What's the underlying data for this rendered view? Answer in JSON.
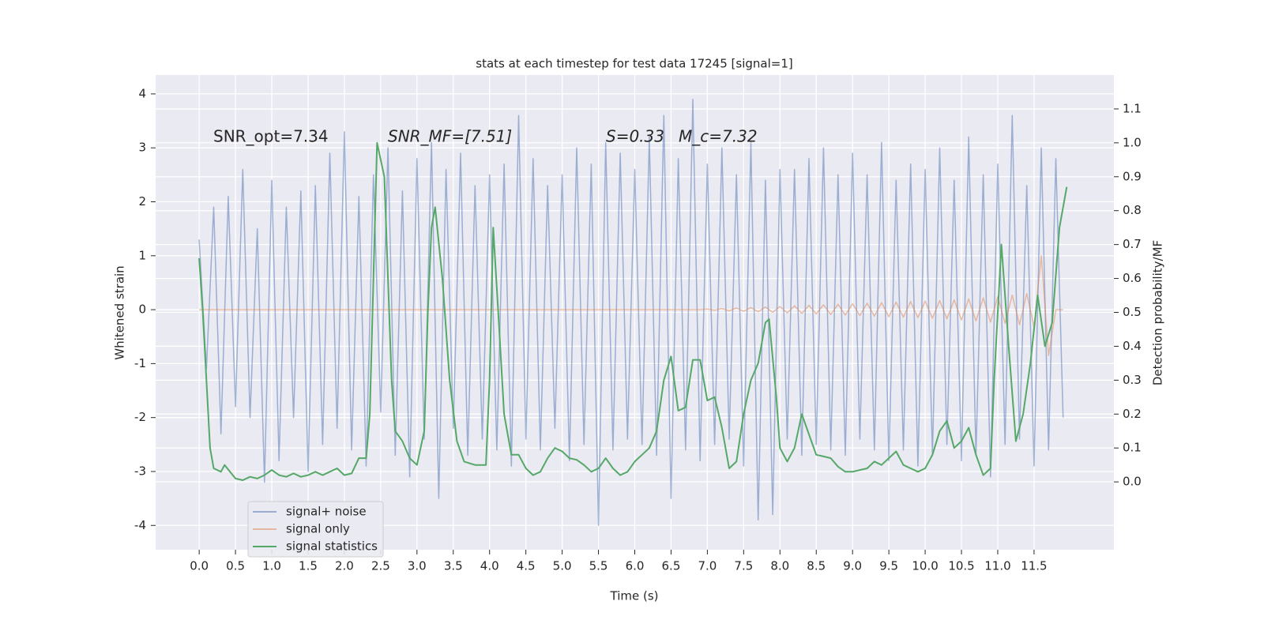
{
  "chart_data": {
    "type": "line",
    "title": "stats at each timestep for test data 17245 [signal=1]",
    "xlabel": "Time (s)",
    "ylabel": "Whitened strain",
    "y2label": "Detection probability/MF",
    "annotations": [
      "SNR_opt=7.34",
      "SNR_MF=[7.51]",
      "S=0.33",
      "M_c=7.32"
    ],
    "xlim": [
      -0.6,
      12.6
    ],
    "ylim": [
      -4.45,
      4.35
    ],
    "y2lim": [
      -0.2,
      1.2
    ],
    "xticks": [
      {
        "value": 0,
        "label": "0.0"
      },
      0.5,
      {
        "value": 1,
        "label": "1.0"
      },
      1.5,
      {
        "value": 2,
        "label": "2.0"
      },
      2.5,
      {
        "value": 3,
        "label": "3.0"
      },
      3.5,
      {
        "value": 4,
        "label": "4.0"
      },
      4.5,
      {
        "value": 5,
        "label": "5.0"
      },
      5.5,
      {
        "value": 6,
        "label": "6.0"
      },
      6.5,
      {
        "value": 7,
        "label": "7.0"
      },
      7.5,
      {
        "value": 8,
        "label": "8.0"
      },
      8.5,
      {
        "value": 9,
        "label": "9.0"
      },
      9.5,
      {
        "value": 10,
        "label": "10.0"
      },
      10.5,
      {
        "value": 11,
        "label": "11.0"
      },
      11.5
    ],
    "yticks": [
      -4,
      -3,
      -2,
      -1,
      0,
      1,
      2,
      3,
      4
    ],
    "y2ticks": [
      {
        "value": 0,
        "label": "0.0"
      },
      0.1,
      0.2,
      0.3,
      0.4,
      0.5,
      0.6,
      0.7,
      0.8,
      0.9,
      {
        "value": 1,
        "label": "1.0"
      },
      1.1
    ],
    "grid": true,
    "legend": "lower left",
    "x": [
      0,
      0.1,
      0.2,
      0.3,
      0.4,
      0.5,
      0.6,
      0.7,
      0.8,
      0.9,
      1,
      1.1,
      1.2,
      1.3,
      1.4,
      1.5,
      1.6,
      1.7,
      1.8,
      1.9,
      2,
      2.1,
      2.2,
      2.3,
      2.4,
      2.5,
      2.6,
      2.7,
      2.8,
      2.9,
      3,
      3.1,
      3.2,
      3.3,
      3.4,
      3.5,
      3.6,
      3.7,
      3.8,
      3.9,
      4,
      4.1,
      4.2,
      4.3,
      4.4,
      4.5,
      4.6,
      4.7,
      4.8,
      4.9,
      5,
      5.1,
      5.2,
      5.3,
      5.4,
      5.5,
      5.6,
      5.7,
      5.8,
      5.9,
      6,
      6.1,
      6.2,
      6.3,
      6.4,
      6.5,
      6.6,
      6.7,
      6.8,
      6.9,
      7,
      7.1,
      7.2,
      7.3,
      7.4,
      7.5,
      7.6,
      7.7,
      7.8,
      7.9,
      8,
      8.1,
      8.2,
      8.3,
      8.4,
      8.5,
      8.6,
      8.7,
      8.8,
      8.9,
      9,
      9.1,
      9.2,
      9.3,
      9.4,
      9.5,
      9.6,
      9.7,
      9.8,
      9.9,
      10,
      10.1,
      10.2,
      10.3,
      10.4,
      10.5,
      10.6,
      10.7,
      10.8,
      10.9,
      11,
      11.1,
      11.2,
      11.3,
      11.4,
      11.5,
      11.6,
      11.7,
      11.8,
      11.9
    ],
    "series": [
      {
        "name": "signal+ noise",
        "color": "#4c72b0",
        "values": [
          1.3,
          -1.1,
          1.9,
          -2.3,
          2.1,
          -1.8,
          2.6,
          -2.0,
          1.5,
          -3.2,
          2.4,
          -2.8,
          1.9,
          -2.0,
          2.2,
          -3.0,
          2.3,
          -2.5,
          2.9,
          -2.2,
          3.3,
          -2.6,
          2.1,
          -2.9,
          2.5,
          -1.9,
          3.0,
          -2.7,
          2.2,
          -3.1,
          2.8,
          -2.4,
          3.1,
          -3.5,
          2.6,
          -2.2,
          2.9,
          -2.7,
          2.3,
          -2.4,
          2.5,
          -2.6,
          2.7,
          -2.9,
          3.6,
          -2.4,
          2.8,
          -2.6,
          2.3,
          -2.2,
          2.5,
          -2.8,
          3.0,
          -2.5,
          2.7,
          -4.0,
          3.1,
          -2.6,
          2.9,
          -2.4,
          2.6,
          -2.5,
          3.2,
          -2.7,
          3.6,
          -3.5,
          2.8,
          -2.6,
          3.9,
          -2.8,
          2.7,
          -2.5,
          3.0,
          -2.4,
          2.5,
          -2.9,
          3.1,
          -3.9,
          2.4,
          -3.8,
          2.6,
          -2.4,
          2.6,
          -2.7,
          2.8,
          -2.5,
          3.0,
          -2.6,
          2.5,
          -2.7,
          2.9,
          -2.4,
          2.5,
          -2.6,
          3.1,
          -2.8,
          2.4,
          -2.6,
          2.7,
          -2.9,
          2.6,
          -2.7,
          3.0,
          -2.5,
          2.4,
          -2.8,
          3.2,
          -2.7,
          2.5,
          -3.1,
          2.7,
          -2.5,
          3.6,
          -2.4,
          2.3,
          -2.9,
          3.0,
          -2.6,
          2.8,
          -2.0
        ]
      },
      {
        "name": "signal only",
        "color": "#dd8452",
        "values": [
          0,
          0,
          0,
          0,
          0,
          0,
          0,
          0,
          0,
          0,
          0,
          0,
          0,
          0,
          0,
          0,
          0,
          0,
          0,
          0,
          0,
          0,
          0,
          0,
          0,
          0,
          0,
          0,
          0,
          0,
          0,
          0,
          0,
          0,
          0,
          0,
          0,
          0,
          0,
          0,
          0,
          0,
          0,
          0,
          0,
          0,
          0,
          0,
          0,
          0,
          0,
          0,
          0,
          0,
          0,
          0,
          0,
          0,
          0,
          0,
          0,
          0,
          0,
          0,
          0,
          0,
          0,
          0,
          0,
          0,
          0.01,
          -0.01,
          0.02,
          -0.02,
          0.03,
          -0.03,
          0.04,
          -0.04,
          0.05,
          -0.05,
          0.06,
          -0.06,
          0.07,
          -0.07,
          0.08,
          -0.08,
          0.09,
          -0.09,
          0.1,
          -0.1,
          0.11,
          -0.11,
          0.12,
          -0.12,
          0.13,
          -0.13,
          0.14,
          -0.14,
          0.15,
          -0.15,
          0.16,
          -0.16,
          0.17,
          -0.17,
          0.18,
          -0.19,
          0.2,
          -0.21,
          0.22,
          -0.23,
          0.24,
          -0.25,
          0.27,
          -0.28,
          0.3,
          -0.32,
          1.0,
          -0.85,
          0,
          0
        ]
      },
      {
        "name": "signal statistics",
        "color": "#55a868",
        "axis": "y2",
        "x": [
          0,
          0.05,
          0.15,
          0.2,
          0.3,
          0.35,
          0.5,
          0.6,
          0.7,
          0.8,
          0.9,
          1,
          1.1,
          1.2,
          1.3,
          1.4,
          1.5,
          1.6,
          1.7,
          1.8,
          1.9,
          2,
          2.1,
          2.2,
          2.3,
          2.35,
          2.45,
          2.55,
          2.65,
          2.7,
          2.8,
          2.9,
          3,
          3.1,
          3.15,
          3.2,
          3.25,
          3.35,
          3.45,
          3.55,
          3.65,
          3.8,
          3.95,
          4,
          4.05,
          4.12,
          4.2,
          4.3,
          4.4,
          4.5,
          4.6,
          4.7,
          4.8,
          4.9,
          5,
          5.1,
          5.2,
          5.3,
          5.4,
          5.5,
          5.6,
          5.7,
          5.8,
          5.9,
          6,
          6.1,
          6.2,
          6.3,
          6.4,
          6.5,
          6.6,
          6.7,
          6.8,
          6.9,
          7,
          7.1,
          7.2,
          7.3,
          7.4,
          7.5,
          7.6,
          7.7,
          7.8,
          7.85,
          7.95,
          8,
          8.1,
          8.2,
          8.3,
          8.4,
          8.5,
          8.6,
          8.7,
          8.8,
          8.9,
          9,
          9.1,
          9.2,
          9.3,
          9.4,
          9.5,
          9.6,
          9.7,
          9.8,
          9.9,
          10,
          10.1,
          10.2,
          10.3,
          10.4,
          10.5,
          10.6,
          10.7,
          10.8,
          10.9,
          10.95,
          11.05,
          11.15,
          11.25,
          11.35,
          11.45,
          11.55,
          11.65,
          11.75,
          11.85,
          11.95
        ],
        "values": [
          0.66,
          0.5,
          0.1,
          0.04,
          0.03,
          0.05,
          0.01,
          0.005,
          0.015,
          0.01,
          0.02,
          0.035,
          0.02,
          0.015,
          0.025,
          0.015,
          0.02,
          0.03,
          0.02,
          0.03,
          0.04,
          0.02,
          0.025,
          0.07,
          0.07,
          0.2,
          1.0,
          0.9,
          0.3,
          0.15,
          0.12,
          0.07,
          0.05,
          0.15,
          0.5,
          0.75,
          0.81,
          0.6,
          0.3,
          0.12,
          0.06,
          0.05,
          0.05,
          0.3,
          0.75,
          0.5,
          0.2,
          0.08,
          0.08,
          0.04,
          0.02,
          0.03,
          0.07,
          0.1,
          0.09,
          0.07,
          0.065,
          0.05,
          0.03,
          0.04,
          0.07,
          0.04,
          0.02,
          0.03,
          0.06,
          0.08,
          0.1,
          0.15,
          0.3,
          0.37,
          0.21,
          0.22,
          0.36,
          0.36,
          0.24,
          0.25,
          0.16,
          0.04,
          0.06,
          0.2,
          0.3,
          0.35,
          0.47,
          0.48,
          0.25,
          0.1,
          0.06,
          0.1,
          0.2,
          0.14,
          0.08,
          0.075,
          0.07,
          0.045,
          0.03,
          0.03,
          0.035,
          0.04,
          0.06,
          0.05,
          0.07,
          0.09,
          0.05,
          0.04,
          0.03,
          0.04,
          0.08,
          0.15,
          0.18,
          0.1,
          0.12,
          0.16,
          0.08,
          0.02,
          0.04,
          0.3,
          0.7,
          0.4,
          0.12,
          0.2,
          0.35,
          0.55,
          0.4,
          0.47,
          0.75,
          0.87
        ]
      }
    ]
  }
}
